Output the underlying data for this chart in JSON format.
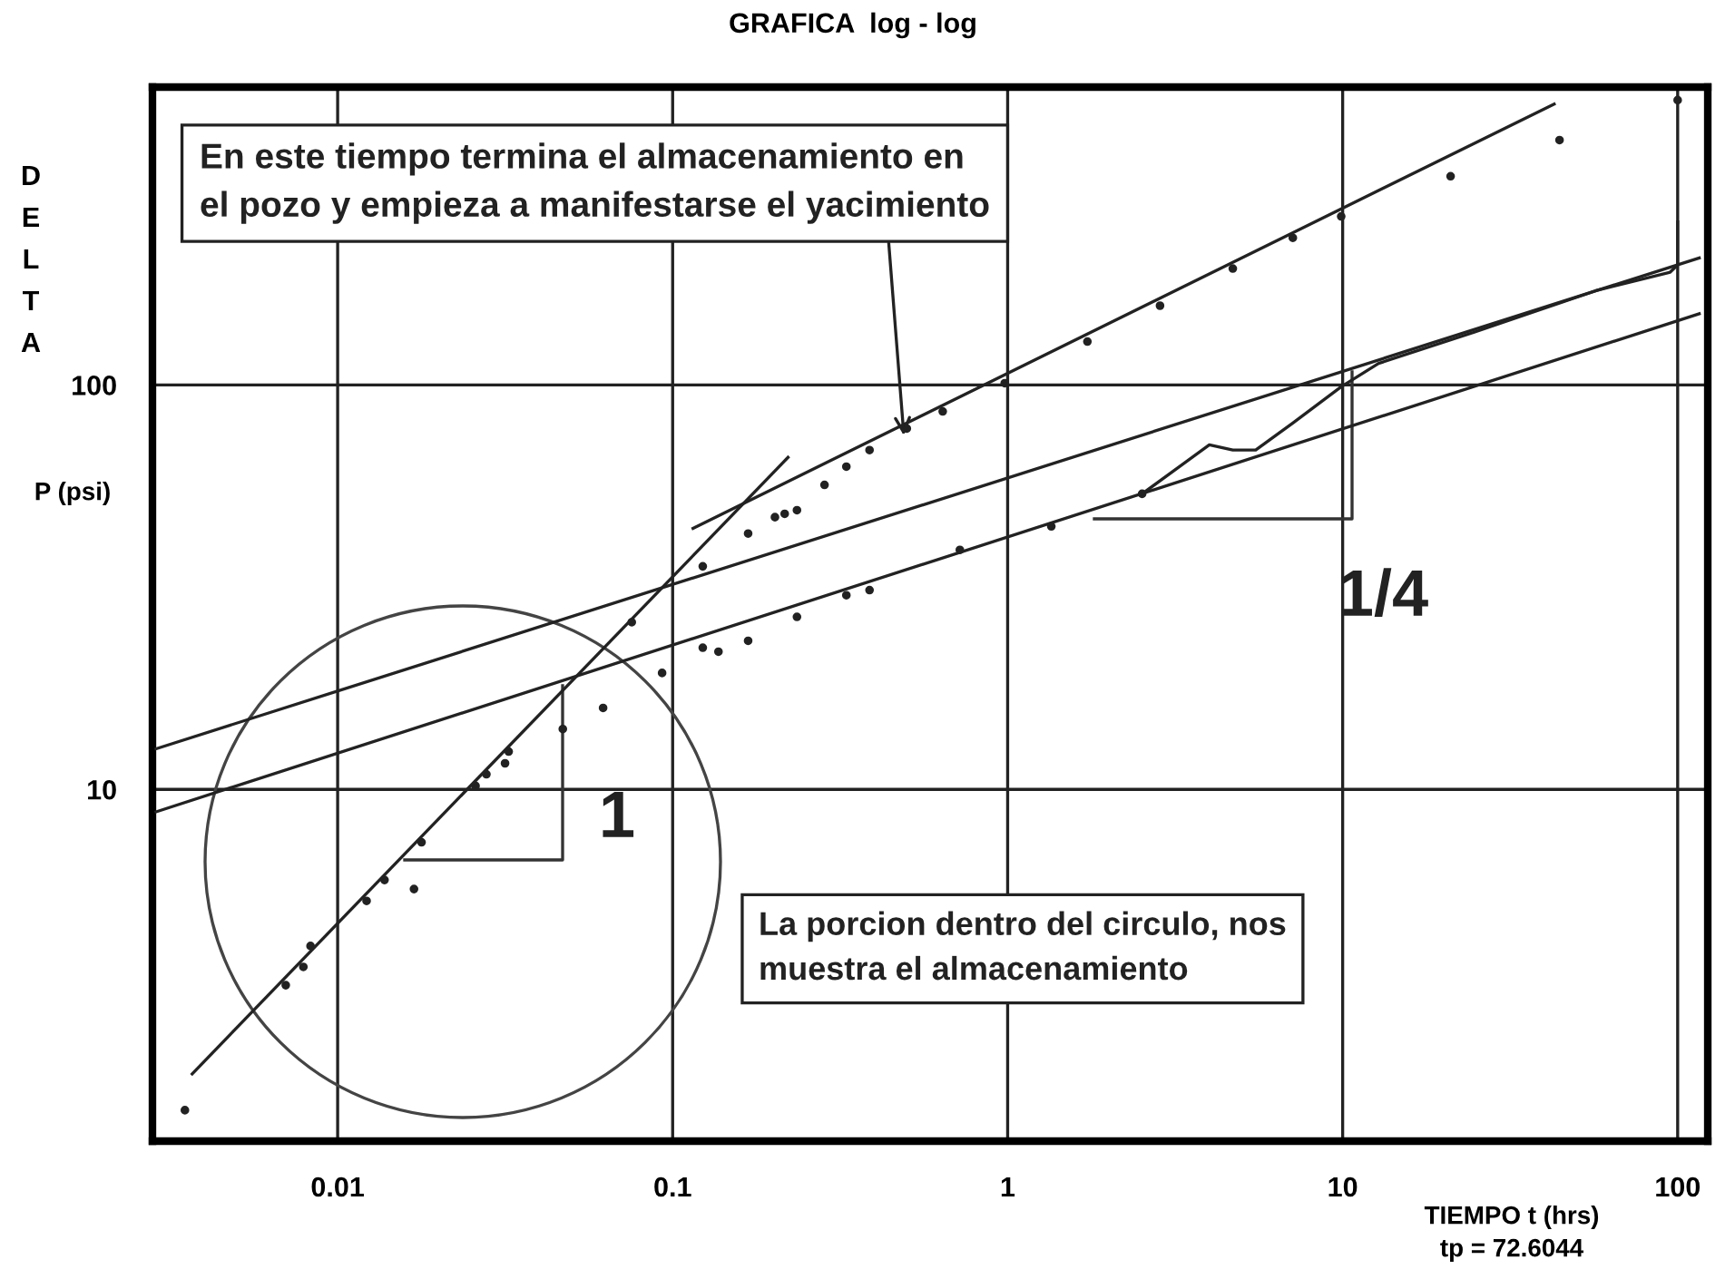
{
  "chart_data": {
    "type": "line",
    "title": "GRAFICA  log - log",
    "xlabel": "TIEMPO t (hrs)",
    "ylabel": "DELTA P (psi)",
    "log": "xy",
    "grid": true,
    "xlim": [
      0.0028,
      123
    ],
    "ylim": [
      1.35,
      545
    ],
    "xticks": [
      0.01,
      0.1,
      1,
      10,
      100
    ],
    "yticks": [
      10,
      100
    ],
    "series": [
      {
        "type": "scatter",
        "marker": "circle",
        "color": "#222222",
        "x": [
          0.0035,
          0.007,
          0.0079,
          0.0083,
          0.0122,
          0.0138,
          0.0169,
          0.0178,
          0.0258,
          0.0278,
          0.0316,
          0.0324,
          0.047,
          0.062,
          0.0755,
          0.093,
          0.123,
          0.137,
          0.168,
          0.235,
          0.33,
          0.387,
          0.72,
          1.35,
          2.52
        ],
        "values": [
          1.61,
          3.28,
          3.64,
          4.1,
          5.3,
          5.97,
          5.67,
          7.4,
          10.2,
          10.9,
          11.6,
          12.4,
          14.1,
          15.9,
          25.9,
          19.4,
          22.4,
          21.9,
          23.3,
          26.7,
          30.2,
          31.1,
          39.1,
          44.7,
          53.8
        ]
      },
      {
        "type": "line",
        "color": "#222222",
        "x": [
          2.52,
          4.0,
          4.7,
          5.5,
          7.1,
          9.9,
          12.8,
          24.7,
          57,
          95,
          100,
          100
        ],
        "values": [
          53.8,
          71.1,
          69,
          69,
          80.5,
          99,
          113,
          135,
          171,
          190,
          198,
          253
        ]
      },
      {
        "type": "scatter",
        "marker": "circle",
        "color": "#222222",
        "x": [
          0.123,
          0.168,
          0.202,
          0.216,
          0.235,
          0.284,
          0.33,
          0.387,
          0.5,
          0.64,
          0.98,
          1.73,
          2.85,
          4.7,
          7.1,
          9.9,
          21,
          44.4,
          100
        ],
        "values": [
          35.6,
          42.9,
          47.1,
          48,
          49,
          56.6,
          62.8,
          69,
          78,
          86,
          101,
          128,
          157,
          194,
          231,
          261,
          328,
          403,
          506
        ]
      },
      {
        "type": "line",
        "color": "#222222",
        "x": [
          0.00368,
          0.221
        ],
        "values": [
          1.98,
          66.2
        ]
      },
      {
        "type": "line",
        "color": "#222222",
        "x": [
          0.115,
          42.8
        ],
        "values": [
          44.2,
          495
        ]
      },
      {
        "type": "line",
        "color": "#222222",
        "x": [
          0.00287,
          116
        ],
        "values": [
          12.6,
          206
        ]
      },
      {
        "color": "#222222",
        "x": [
          0.00287,
          116
        ],
        "values": [
          8.8,
          150
        ]
      }
    ],
    "annotations": [
      {
        "text": "En este tiempo termina el almacenamiento en\nel pozo y empieza a manifestarse el yacimiento",
        "x": 0.49,
        "y": 75
      },
      "La porcion dentro del circulo, nos\nmuestra el almacenamiento",
      "1",
      "1/4",
      "tp = 72.6044"
    ]
  }
}
